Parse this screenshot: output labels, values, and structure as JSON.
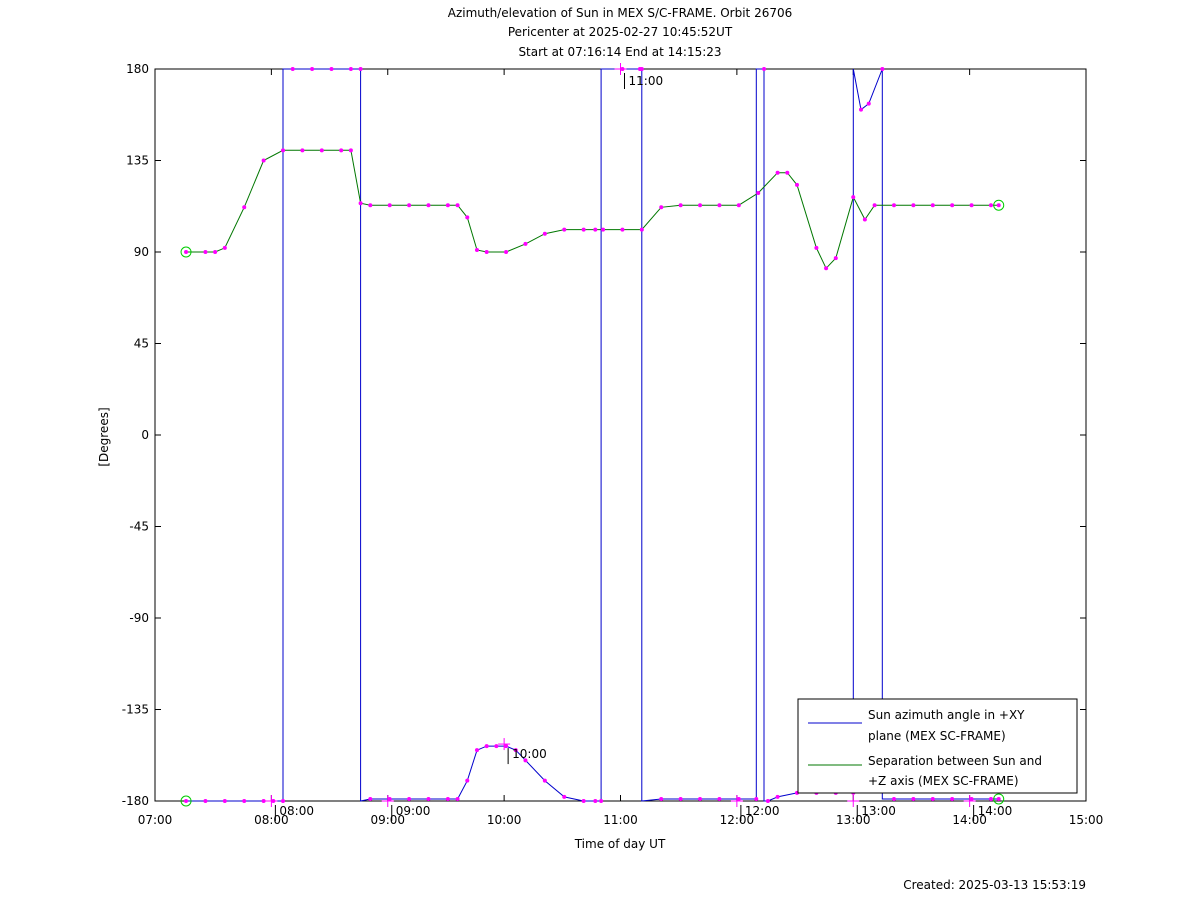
{
  "chart_data": {
    "type": "line",
    "title_lines": [
      "Azimuth/elevation of Sun in MEX S/C-FRAME.  Orbit 26706",
      "Pericenter at 2025-02-27 10:45:52UT",
      "Start at 07:16:14 End at 14:15:23"
    ],
    "xlabel": "Time of day UT",
    "ylabel": "[Degrees]",
    "xlim_hours": [
      7,
      15
    ],
    "ylim": [
      -180,
      180
    ],
    "x_tick_labels": [
      "07:00",
      "08:00",
      "09:00",
      "10:00",
      "11:00",
      "12:00",
      "13:00",
      "14:00",
      "15:00"
    ],
    "y_ticks": [
      180,
      135,
      90,
      45,
      0,
      -45,
      -90,
      -135,
      -180
    ],
    "legend_position": "bottom-right",
    "legend": [
      {
        "lines": [
          "Sun azimuth angle in +XY",
          "plane (MEX SC-FRAME)"
        ],
        "color": "#0000cc"
      },
      {
        "lines": [
          "Separation between Sun and",
          "+Z axis (MEX SC-FRAME)"
        ],
        "color": "#007700"
      }
    ],
    "hour_markers": [
      {
        "label": "08:00",
        "x": "08:00",
        "y": -180
      },
      {
        "label": "09:00",
        "x": "09:00",
        "y": -180
      },
      {
        "label": "10:00",
        "x": "10:00",
        "y": -152
      },
      {
        "label": "11:00",
        "x": "11:00",
        "y": 180
      },
      {
        "label": "12:00",
        "x": "12:00",
        "y": -180
      },
      {
        "label": "13:00",
        "x": "13:00",
        "y": -180
      },
      {
        "label": "14:00",
        "x": "14:00",
        "y": -180
      }
    ],
    "series": [
      {
        "name": "Sun azimuth angle in +XY plane (MEX SC-FRAME)",
        "color": "#0000cc",
        "x": [
          "07:16",
          "07:26",
          "07:36",
          "07:46",
          "07:56",
          "08:01",
          "08:06",
          "08:06",
          "08:11",
          "08:21",
          "08:31",
          "08:41",
          "08:46",
          "08:46",
          "08:51",
          "09:01",
          "09:11",
          "09:21",
          "09:31",
          "09:36",
          "09:41",
          "09:46",
          "09:51",
          "09:56",
          "10:01",
          "10:06",
          "10:11",
          "10:21",
          "10:31",
          "10:41",
          "10:47",
          "10:50",
          "10:50",
          "11:01",
          "11:10",
          "11:11",
          "11:11",
          "11:21",
          "11:31",
          "11:41",
          "11:51",
          "12:01",
          "12:10",
          "12:10",
          "12:14",
          "12:14",
          "12:16",
          "12:16",
          "12:21",
          "12:31",
          "12:41",
          "12:51",
          "13:00",
          "13:00",
          "13:04",
          "13:08",
          "13:15",
          "13:15",
          "13:21",
          "13:31",
          "13:41",
          "13:51",
          "14:01",
          "14:11",
          "14:15"
        ],
        "y": [
          -180,
          -180,
          -180,
          -180,
          -180,
          -180,
          -180,
          180,
          180,
          180,
          180,
          180,
          180,
          -180,
          -179,
          -179,
          -179,
          -179,
          -179,
          -179,
          -170,
          -155,
          -153,
          -153,
          -153,
          -155,
          -160,
          -170,
          -178,
          -180,
          -180,
          -180,
          180,
          180,
          180,
          180,
          -180,
          -179,
          -179,
          -179,
          -179,
          -179,
          -179,
          180,
          180,
          -180,
          -180,
          -180,
          -178,
          -176,
          -176,
          -176,
          -176,
          180,
          160,
          163,
          180,
          -179,
          -179,
          -179,
          -179,
          -179,
          -179,
          -179,
          -179
        ]
      },
      {
        "name": "Separation between Sun and +Z axis (MEX SC-FRAME)",
        "color": "#007700",
        "x": [
          "07:16",
          "07:26",
          "07:31",
          "07:36",
          "07:46",
          "07:56",
          "08:06",
          "08:16",
          "08:26",
          "08:36",
          "08:41",
          "08:46",
          "08:51",
          "09:01",
          "09:11",
          "09:21",
          "09:31",
          "09:36",
          "09:41",
          "09:46",
          "09:51",
          "10:01",
          "10:11",
          "10:21",
          "10:31",
          "10:41",
          "10:47",
          "10:51",
          "11:01",
          "11:11",
          "11:21",
          "11:31",
          "11:41",
          "11:51",
          "12:01",
          "12:11",
          "12:21",
          "12:26",
          "12:31",
          "12:41",
          "12:46",
          "12:51",
          "13:00",
          "13:06",
          "13:11",
          "13:21",
          "13:31",
          "13:41",
          "13:51",
          "14:01",
          "14:11",
          "14:15"
        ],
        "y": [
          90,
          90,
          90,
          92,
          112,
          135,
          140,
          140,
          140,
          140,
          140,
          114,
          113,
          113,
          113,
          113,
          113,
          113,
          107,
          91,
          90,
          90,
          94,
          99,
          101,
          101,
          101,
          101,
          101,
          101,
          112,
          113,
          113,
          113,
          113,
          119,
          129,
          129,
          123,
          92,
          82,
          87,
          117,
          106,
          113,
          113,
          113,
          113,
          113,
          113,
          113,
          113
        ]
      }
    ]
  },
  "footer": {
    "created": "Created: 2025-03-13 15:53:19"
  }
}
